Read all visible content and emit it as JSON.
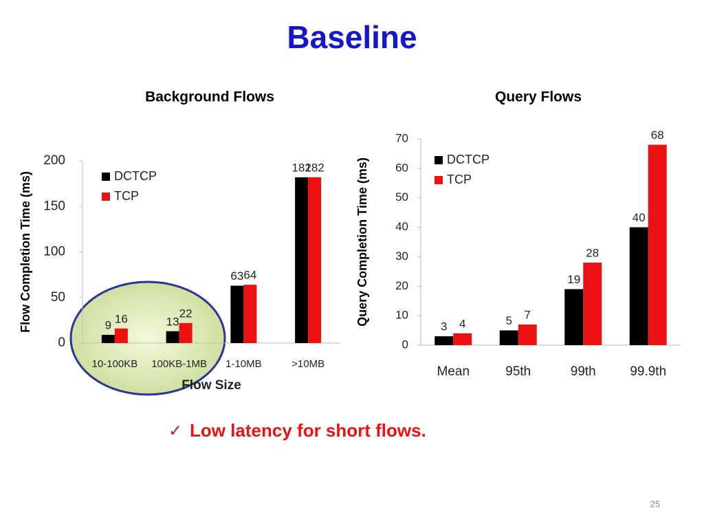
{
  "slide": {
    "title": "Baseline",
    "check": "✓",
    "note": "Low latency for short flows.",
    "page_number": "25"
  },
  "chart_data": [
    {
      "type": "bar",
      "title": "Background Flows",
      "x_label": "Flow Size",
      "y_label": "Flow Completion Time (ms)",
      "categories": [
        "10-100KB",
        "100KB-1MB",
        "1-10MB",
        ">10MB"
      ],
      "series": [
        {
          "name": "DCTCP",
          "color": "#000000",
          "values": [
            9,
            13,
            63,
            182
          ]
        },
        {
          "name": "TCP",
          "color": "#ee1111",
          "values": [
            16,
            22,
            64,
            182
          ]
        }
      ],
      "ylim": [
        0,
        200
      ],
      "yticks": [
        0,
        50,
        100,
        150,
        200
      ],
      "legend": "upper left"
    },
    {
      "type": "bar",
      "title": "Query Flows",
      "y_label": "Query Completion Time (ms)",
      "categories": [
        "Mean",
        "95th",
        "99th",
        "99.9th"
      ],
      "series": [
        {
          "name": "DCTCP",
          "color": "#000000",
          "values": [
            3,
            5,
            19,
            40
          ]
        },
        {
          "name": "TCP",
          "color": "#ee1111",
          "values": [
            4,
            7,
            28,
            68
          ]
        }
      ],
      "ylim": [
        0,
        70
      ],
      "yticks": [
        0,
        10,
        20,
        30,
        40,
        50,
        60,
        70
      ],
      "legend": "upper left"
    }
  ]
}
